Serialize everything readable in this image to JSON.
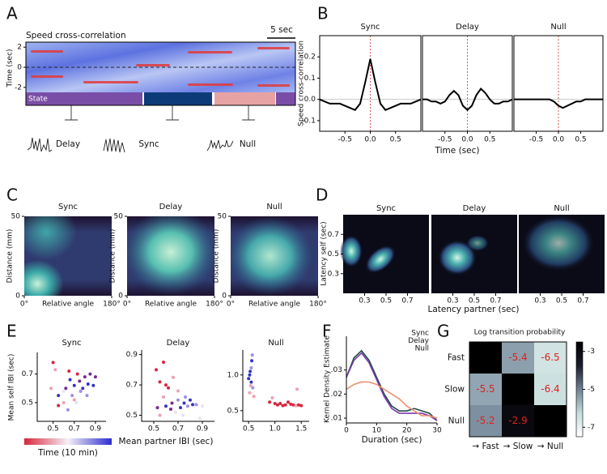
{
  "chart_data": [
    {
      "type": "raster",
      "panel_label": "A",
      "title": "Speed cross-correlation",
      "scale_label": "5 sec",
      "ylabel": "Time (sec)",
      "ylim": [
        -2.5,
        2.5
      ],
      "yticks": [
        2,
        0,
        -2
      ],
      "state_label": "State",
      "states": [
        {
          "name": "Delay",
          "color": "#7a4ea6",
          "label_color": "#8b2ea0"
        },
        {
          "name": "Sync",
          "color": "#0d3b78",
          "label_color": "#1f3fbf"
        },
        {
          "name": "Null",
          "color": "#e7a3a3",
          "label_color": "#e08a8a"
        }
      ]
    },
    {
      "type": "line-panels",
      "panel_label": "B",
      "ylabel": "Speed cross-correlation",
      "xlabel": "Time (sec)",
      "xlim": [
        -1,
        1
      ],
      "xticks": [
        -0.5,
        {
          "value": 0,
          "label": "0.0"
        },
        0.5
      ],
      "ylim": [
        -0.15,
        0.3
      ],
      "yticks": [
        -0.1,
        {
          "value": 0,
          "label": "0.0"
        },
        0.1,
        0.2
      ],
      "x": [
        -1,
        -0.9,
        -0.8,
        -0.7,
        -0.6,
        -0.5,
        -0.4,
        -0.3,
        -0.2,
        -0.1,
        0,
        0.1,
        0.2,
        0.3,
        0.4,
        0.5,
        0.6,
        0.7,
        0.8,
        0.9,
        1
      ],
      "panels": [
        {
          "title": "Sync",
          "color": "#1f3fbf",
          "values": [
            0,
            -0.01,
            -0.02,
            -0.02,
            -0.02,
            -0.03,
            -0.04,
            -0.05,
            -0.02,
            0.08,
            0.19,
            0.08,
            -0.02,
            -0.05,
            -0.04,
            -0.03,
            -0.02,
            -0.02,
            -0.02,
            -0.01,
            0
          ]
        },
        {
          "title": "Delay",
          "color": "#8b2ea0",
          "values": [
            0,
            0,
            -0.01,
            -0.01,
            -0.02,
            -0.01,
            0.02,
            0.04,
            0.02,
            -0.03,
            -0.05,
            -0.03,
            0.02,
            0.05,
            0.03,
            0,
            -0.02,
            -0.02,
            -0.01,
            -0.01,
            0
          ]
        },
        {
          "title": "Null",
          "color": "#e08a8a",
          "values": [
            0,
            0,
            0,
            0,
            0,
            0,
            0,
            0,
            0,
            -0.01,
            -0.03,
            -0.04,
            -0.03,
            -0.02,
            -0.01,
            -0.01,
            0,
            0,
            0,
            0,
            0
          ]
        }
      ]
    },
    {
      "type": "density",
      "panel_label": "C",
      "ylabel": "Distance (mm)",
      "xlabel": "Relative angle",
      "ylim": [
        0,
        50
      ],
      "yticks": [
        0,
        50
      ],
      "xlim": [
        0,
        180
      ],
      "xticks": [
        {
          "value": 0,
          "label": "0°"
        },
        {
          "value": 180,
          "label": "180°"
        }
      ],
      "panels": [
        {
          "title": "Sync",
          "color": "#1f3fbf"
        },
        {
          "title": "Delay",
          "color": "#8b2ea0"
        },
        {
          "title": "Null",
          "color": "#e08a8a"
        }
      ]
    },
    {
      "type": "heatmap-panels",
      "panel_label": "D",
      "ylabel": "Latency self (sec)",
      "xlabel": "Latency partner (sec)",
      "xlim": [
        0.1,
        0.9
      ],
      "xticks": [
        0.3,
        0.5,
        0.7
      ],
      "ylim": [
        0.1,
        0.9
      ],
      "yticks": [
        0.3,
        0.5,
        0.7
      ],
      "panels": [
        {
          "title": "Sync",
          "color": "#1f3fbf"
        },
        {
          "title": "Delay",
          "color": "#8b2ea0"
        },
        {
          "title": "Null",
          "color": "#e08a8a"
        }
      ]
    },
    {
      "type": "scatter-panels",
      "panel_label": "E",
      "ylabel": "Mean self IBI (sec)",
      "xlabel": "Mean partner IBI (sec)",
      "colorbar_label": "Time (10 min)",
      "colorbar_colors": [
        "#d7263d",
        "#f4f0f6",
        "#2c2cd0"
      ],
      "panels": [
        {
          "title": "Sync",
          "color": "#1f3fbf",
          "xlim": [
            0.35,
            1.0
          ],
          "xticks": [
            0.5,
            0.7,
            0.9
          ],
          "ylim": [
            0.37,
            0.85
          ],
          "yticks": [
            0.5,
            0.7
          ],
          "x": [
            0.5,
            0.55,
            0.6,
            0.62,
            0.65,
            0.68,
            0.7,
            0.72,
            0.75,
            0.78,
            0.8,
            0.82,
            0.85,
            0.88,
            0.9,
            0.55,
            0.6,
            0.66,
            0.7,
            0.76,
            0.83,
            0.48,
            0.52,
            0.64,
            0.73
          ],
          "y": [
            0.78,
            0.55,
            0.5,
            0.6,
            0.72,
            0.55,
            0.62,
            0.5,
            0.65,
            0.6,
            0.68,
            0.55,
            0.7,
            0.62,
            0.68,
            0.48,
            0.58,
            0.66,
            0.52,
            0.58,
            0.63,
            0.6,
            0.73,
            0.45,
            0.7
          ],
          "colors": [
            "#d7263d",
            "#3434c8",
            "#f0a0b0",
            "#7a2a90",
            "#d7263d",
            "#9d8ee0",
            "#3434c8",
            "#e6e2ee",
            "#7a2a90",
            "#3434c8",
            "#7a2a90",
            "#9d8ee0",
            "#7a2a90",
            "#3434c8",
            "#7a2a90",
            "#d7263d",
            "#e6e2ee",
            "#3434c8",
            "#f0a0b0",
            "#9d8ee0",
            "#3434c8",
            "#f0a0b0",
            "#f0a0b0",
            "#9d8ee0",
            "#d7263d"
          ]
        },
        {
          "title": "Delay",
          "color": "#8b2ea0",
          "xlim": [
            0.4,
            1.0
          ],
          "xticks": [
            0.5,
            0.7,
            0.9
          ],
          "ylim": [
            0.46,
            0.93
          ],
          "yticks": [
            0.5,
            0.7,
            0.9
          ],
          "x": [
            0.52,
            0.55,
            0.58,
            0.6,
            0.62,
            0.65,
            0.68,
            0.7,
            0.72,
            0.75,
            0.78,
            0.8,
            0.85,
            0.9,
            0.55,
            0.6,
            0.64,
            0.7,
            0.74,
            0.82,
            0.58,
            0.66,
            0.76,
            0.88,
            0.53
          ],
          "y": [
            0.8,
            0.72,
            0.62,
            0.56,
            0.68,
            0.58,
            0.52,
            0.6,
            0.55,
            0.58,
            0.56,
            0.6,
            0.57,
            0.56,
            0.5,
            0.7,
            0.54,
            0.66,
            0.5,
            0.57,
            0.85,
            0.75,
            0.62,
            0.48,
            0.55
          ],
          "colors": [
            "#d7263d",
            "#d7263d",
            "#f0a0b0",
            "#3434c8",
            "#d7263d",
            "#7a2a90",
            "#e6e2ee",
            "#9d8ee0",
            "#3434c8",
            "#3434c8",
            "#9d8ee0",
            "#3434c8",
            "#9d8ee0",
            "#e6e2ee",
            "#f0a0b0",
            "#d7263d",
            "#7a2a90",
            "#f0a0b0",
            "#e6e2ee",
            "#3434c8",
            "#d7263d",
            "#f0a0b0",
            "#9d8ee0",
            "#e6e2ee",
            "#7a2a90"
          ]
        },
        {
          "title": "Null",
          "color": "#e08a8a",
          "xlim": [
            0.39,
            1.65
          ],
          "xticks": [
            0.5,
            {
              "value": 1,
              "label": "1.0"
            },
            1.5
          ],
          "ylim": [
            0.35,
            1.35
          ],
          "yticks": [
            0.5,
            {
              "value": 1,
              "label": "1.0"
            }
          ],
          "x": [
            0.5,
            0.52,
            0.53,
            0.55,
            0.56,
            0.57,
            0.55,
            0.54,
            0.58,
            0.52,
            0.9,
            1.0,
            1.05,
            1.1,
            1.15,
            1.2,
            1.3,
            1.35,
            1.4,
            1.45,
            1.5,
            0.95,
            1.25,
            1.42,
            0.6
          ],
          "y": [
            0.95,
            1.0,
            1.05,
            1.1,
            1.2,
            1.28,
            0.9,
            0.85,
            0.82,
            0.75,
            0.62,
            0.6,
            0.58,
            0.6,
            0.57,
            0.58,
            0.59,
            0.58,
            0.57,
            0.58,
            0.57,
            0.68,
            0.62,
            0.8,
            0.7
          ],
          "colors": [
            "#3434c8",
            "#3434c8",
            "#3434c8",
            "#9d8ee0",
            "#3434c8",
            "#9d8ee0",
            "#3434c8",
            "#f0a0b0",
            "#9d8ee0",
            "#f0a0b0",
            "#d7263d",
            "#d7263d",
            "#d7263d",
            "#d7263d",
            "#d7263d",
            "#d7263d",
            "#d7263d",
            "#d7263d",
            "#f0a0b0",
            "#d7263d",
            "#d7263d",
            "#f0a0b0",
            "#d7263d",
            "#f0a0b0",
            "#f0a0b0"
          ]
        }
      ]
    },
    {
      "type": "line",
      "panel_label": "F",
      "ylabel": "Kernel Density Estimate",
      "xlabel": "Duration (sec)",
      "xlim": [
        0,
        30
      ],
      "xticks": [
        0,
        10,
        20,
        30
      ],
      "ylim": [
        0.008,
        0.044
      ],
      "yticks": [
        {
          "value": 0.01,
          "label": ".01"
        },
        {
          "value": 0.02,
          "label": ".02"
        },
        {
          "value": 0.03,
          "label": ".03"
        }
      ],
      "x": [
        0,
        2.5,
        5,
        7.5,
        10,
        12.5,
        15,
        17.5,
        20,
        22.5,
        25,
        27.5,
        30
      ],
      "series": [
        {
          "name": "Sync",
          "color": "#1f3fbf",
          "line_color": "#1f4a4a",
          "values": [
            0.027,
            0.035,
            0.038,
            0.034,
            0.027,
            0.02,
            0.015,
            0.013,
            0.013,
            0.014,
            0.013,
            0.012,
            0.009
          ]
        },
        {
          "name": "Delay",
          "color": "#8b2ea0",
          "line_color": "#7a3aa8",
          "values": [
            0.027,
            0.034,
            0.037,
            0.033,
            0.026,
            0.019,
            0.014,
            0.012,
            0.012,
            0.012,
            0.012,
            0.011,
            0.009
          ]
        },
        {
          "name": "Null",
          "color": "#e08a8a",
          "line_color": "#ee9070",
          "values": [
            0.022,
            0.024,
            0.025,
            0.025,
            0.024,
            0.022,
            0.02,
            0.018,
            0.015,
            0.013,
            0.011,
            0.011,
            0.01
          ]
        }
      ]
    },
    {
      "type": "matrix",
      "panel_label": "G",
      "title": "Log transition probability",
      "rows": [
        "Fast",
        "Slow",
        "Null"
      ],
      "columns": [
        "→ Fast",
        "→ Slow",
        "→ Null"
      ],
      "values": [
        [
          null,
          -5.4,
          -6.5
        ],
        [
          -5.5,
          null,
          -6.4
        ],
        [
          -5.2,
          -2.9,
          null
        ]
      ],
      "ylim": [
        -7.5,
        -2.5
      ],
      "yticks": [
        -3,
        -5,
        -7
      ],
      "colormap": [
        "#ffffff",
        "#c5dcdc",
        "#6f8296",
        "#1c1c2e",
        "#000000"
      ],
      "text_color": "#e02020"
    }
  ]
}
